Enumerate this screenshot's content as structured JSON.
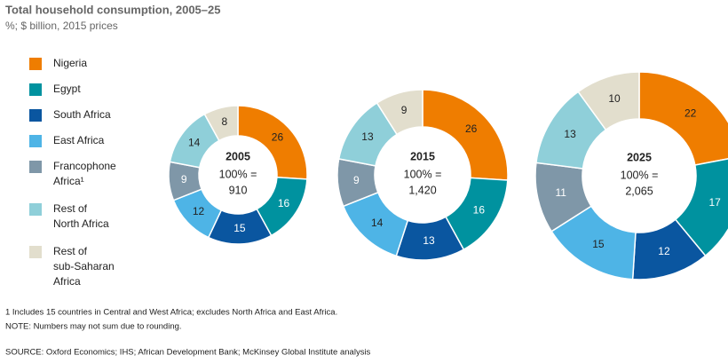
{
  "chart_data": {
    "type": "pie",
    "donut": true,
    "title": "Total household consumption, 2005–25",
    "subtitle": "%; $ billion, 2015 prices",
    "categories": [
      "Nigeria",
      "Egypt",
      "South Africa",
      "East Africa",
      "Francophone Africa¹",
      "Rest of North Africa",
      "Rest of sub-Saharan Africa"
    ],
    "colors": [
      "#ef7d00",
      "#00929f",
      "#0a56a0",
      "#4eb4e6",
      "#7f97a8",
      "#8fcfd9",
      "#e2decd"
    ],
    "label_colors": [
      "#222222",
      "#ffffff",
      "#ffffff",
      "#222222",
      "#ffffff",
      "#222222",
      "#222222"
    ],
    "total_prefix": "100% =",
    "series": [
      {
        "name": "2005",
        "values": [
          26,
          16,
          15,
          12,
          9,
          14,
          8
        ],
        "total": {
          "value": 910,
          "label": "910"
        }
      },
      {
        "name": "2015",
        "values": [
          26,
          16,
          13,
          14,
          9,
          13,
          9
        ],
        "total": {
          "value": 1420,
          "label": "1,420"
        }
      },
      {
        "name": "2025",
        "values": [
          22,
          17,
          12,
          15,
          11,
          13,
          10
        ],
        "total": {
          "value": 2065,
          "label": "2,065"
        }
      }
    ],
    "footnotes": [
      "1  Includes 15 countries in Central and West Africa; excludes North Africa and East Africa.",
      "NOTE: Numbers may not sum due to rounding.",
      "SOURCE:  Oxford Economics; IHS; African Development Bank; McKinsey Global Institute analysis"
    ]
  }
}
